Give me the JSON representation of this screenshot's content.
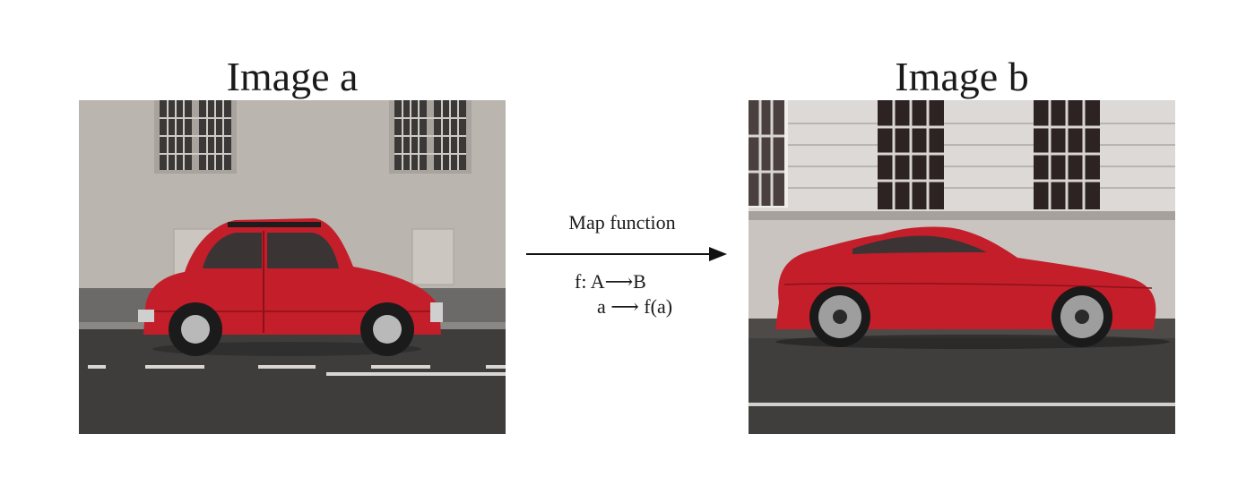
{
  "left": {
    "title": "Image a"
  },
  "right": {
    "title": "Image b"
  },
  "mapping": {
    "label": "Map function",
    "signature": "f: A⟶B",
    "rule": "a ⟶ f(a)"
  },
  "colors": {
    "car_red": "#c41e2a",
    "arrow": "#111111"
  }
}
